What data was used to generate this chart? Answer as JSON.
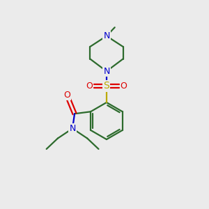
{
  "background_color": "#ebebeb",
  "bond_color": "#2d6b2d",
  "nitrogen_color": "#0000cc",
  "oxygen_color": "#dd0000",
  "sulfur_color": "#bbaa00",
  "figsize": [
    3.0,
    3.0
  ],
  "dpi": 100,
  "xlim": [
    0,
    10
  ],
  "ylim": [
    0,
    10
  ]
}
